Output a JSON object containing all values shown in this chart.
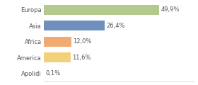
{
  "categories": [
    "Europa",
    "Asia",
    "Africa",
    "America",
    "Apolidi"
  ],
  "values": [
    49.9,
    26.4,
    12.0,
    11.6,
    0.1
  ],
  "labels": [
    "49,9%",
    "26,4%",
    "12,0%",
    "11,6%",
    "0,1%"
  ],
  "bar_colors": [
    "#b5c98e",
    "#6f8fbd",
    "#f0aa72",
    "#f5d07a",
    "#eeeeee"
  ],
  "background_color": "#ffffff",
  "xlim": [
    0,
    65
  ],
  "label_fontsize": 6.0,
  "tick_fontsize": 6.0
}
